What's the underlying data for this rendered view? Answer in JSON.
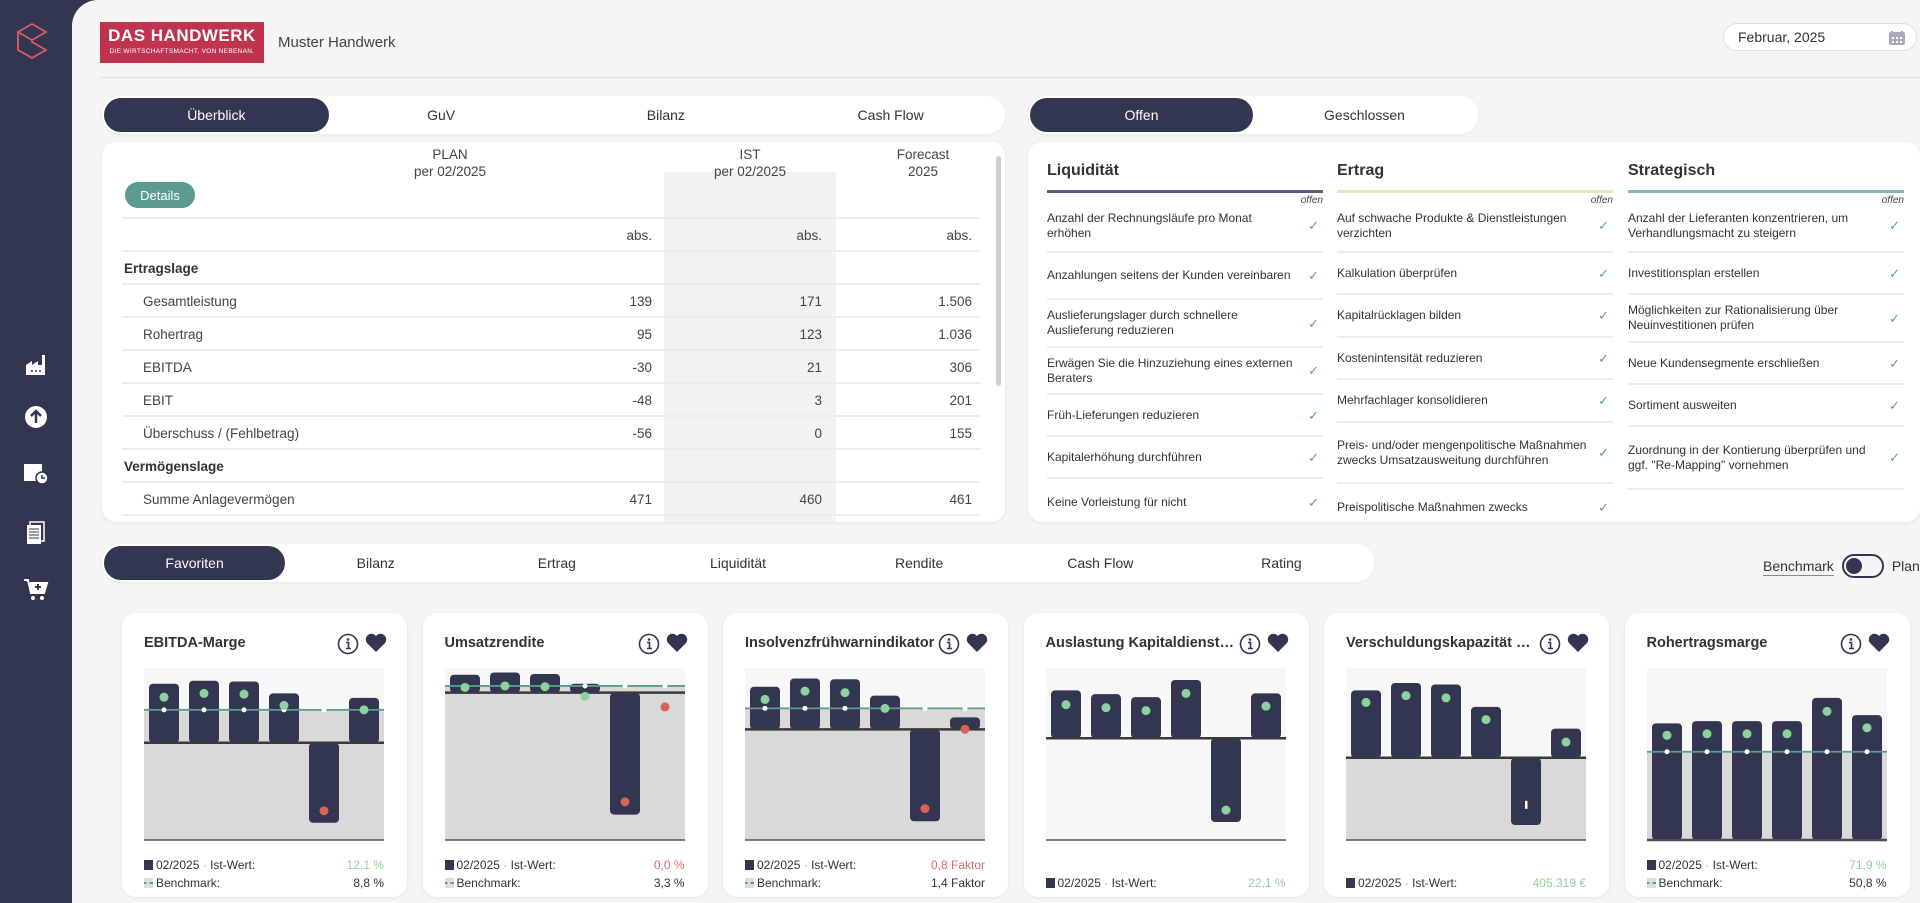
{
  "header": {
    "logo_line1": "DAS HANDWERK",
    "logo_line2": "DIE WIRTSCHAFTSMACHT. VON NEBENAN.",
    "company": "Muster Handwerk",
    "date": "Februar, 2025"
  },
  "sidebar": {
    "items": [
      "factory-icon",
      "upload-icon",
      "calendar-clock-icon",
      "documents-icon",
      "cart-plus-icon"
    ]
  },
  "main_tabs": [
    {
      "label": "Überblick",
      "active": true
    },
    {
      "label": "GuV"
    },
    {
      "label": "Bilanz"
    },
    {
      "label": "Cash Flow"
    }
  ],
  "status_tabs": [
    {
      "label": "Offen",
      "active": true
    },
    {
      "label": "Geschlossen"
    }
  ],
  "table": {
    "details_label": "Details",
    "columns": [
      {
        "l1": "PLAN",
        "l2": "per 02/2025"
      },
      {
        "l1": "IST",
        "l2": "per 02/2025"
      },
      {
        "l1": "Forecast",
        "l2": "2025"
      }
    ],
    "unit": "abs.",
    "rows": [
      {
        "label": "Ertragslage",
        "section": true
      },
      {
        "label": "Gesamtleistung",
        "plan": "139",
        "ist": "171",
        "forecast": "1.506"
      },
      {
        "label": "Rohertrag",
        "plan": "95",
        "ist": "123",
        "forecast": "1.036"
      },
      {
        "label": "EBITDA",
        "plan": "-30",
        "ist": "21",
        "forecast": "306"
      },
      {
        "label": "EBIT",
        "plan": "-48",
        "ist": "3",
        "forecast": "201"
      },
      {
        "label": "Überschuss / (Fehlbetrag)",
        "plan": "-56",
        "ist": "0",
        "forecast": "155"
      },
      {
        "label": "Vermögenslage",
        "section": true
      },
      {
        "label": "Summe Anlagevermögen",
        "plan": "471",
        "ist": "460",
        "forecast": "461"
      }
    ]
  },
  "measures": {
    "status_label": "offen",
    "columns": [
      {
        "title": "Liquidität",
        "color": "#5b5b7a",
        "items": [
          "Anzahl der Rechnungsläufe pro Monat erhöhen",
          "Anzahlungen seitens der Kunden vereinbaren",
          "Auslieferungslager durch schnellere Auslieferung reduzieren",
          "Erwägen Sie die Hinzuziehung eines externen Beraters",
          "Früh-Lieferungen reduzieren",
          "Kapitalerhöhung durchführen",
          "Keine Vorleistung für nicht"
        ]
      },
      {
        "title": "Ertrag",
        "color": "#e9e3c4",
        "items": [
          "Auf schwache Produkte & Dienstleistungen verzichten",
          "Kalkulation überprüfen",
          "Kapitalrücklagen bilden",
          "Kostenintensität reduzieren",
          "Mehrfachlager konsolidieren",
          "Preis- und/oder mengenpolitische Maßnahmen zwecks Umsatzausweitung durchführen",
          "Preispolitische Maßnahmen zwecks"
        ]
      },
      {
        "title": "Strategisch",
        "color": "#7fb8b3",
        "items": [
          "Anzahl der Lieferanten konzentrieren, um Verhandlungsmacht zu steigern",
          "Investitionsplan erstellen",
          "Möglichkeiten zur Rationalisierung über Neuinvestitionen prüfen",
          "Neue Kundensegmente erschließen",
          "Sortiment ausweiten",
          "Zuordnung in der Kontierung überprüfen und ggf. \"Re-Mapping\" vornehmen"
        ]
      }
    ]
  },
  "kpi_tabs": [
    {
      "label": "Favoriten",
      "active": true
    },
    {
      "label": "Bilanz"
    },
    {
      "label": "Ertrag"
    },
    {
      "label": "Liquidität"
    },
    {
      "label": "Rendite"
    },
    {
      "label": "Cash Flow"
    },
    {
      "label": "Rating"
    }
  ],
  "toggle": {
    "left": "Benchmark",
    "right": "Plan",
    "state": "Benchmark"
  },
  "colors": {
    "navy": "#323651",
    "green": "#8fd19e",
    "red": "#d9625a",
    "teal": "#5c9c90"
  },
  "chart_data": [
    {
      "type": "bar",
      "title": "EBITDA-Marge",
      "ylim": [
        -13,
        10
      ],
      "bars": [
        7.9,
        8.3,
        8.2,
        6.6,
        -10.7,
        6.0
      ],
      "dots": [
        6.1,
        6.6,
        6.5,
        5.0,
        -9.1,
        4.4
      ],
      "dot_colors": [
        "green",
        "green",
        "green",
        "green",
        "red",
        "green"
      ],
      "benchmark": 4.4,
      "period": "02/2025",
      "ist_label": "Ist-Wert:",
      "ist_value": "12,1 %",
      "ist_color": "green",
      "bench_label": "Benchmark:",
      "bench_value": "8,8 %"
    },
    {
      "type": "bar",
      "title": "Umsatzrendite",
      "ylim": [
        -19.7,
        3.3
      ],
      "bars": [
        2.4,
        2.7,
        2.5,
        1.2,
        -16.3,
        0
      ],
      "dots": [
        0.7,
        0.9,
        0.8,
        -0.5,
        -14.6,
        -1.9
      ],
      "dot_colors": [
        "green",
        "green",
        "green",
        "green",
        "red",
        "red"
      ],
      "benchmark": 0.9,
      "period": "02/2025",
      "ist_label": "Ist-Wert:",
      "ist_value": "0,0 %",
      "ist_color": "red",
      "bench_label": "Benchmark:",
      "bench_value": "3,3 %"
    },
    {
      "type": "bar",
      "title": "Insolvenzfrühwarnindikator",
      "ylim": [
        -14.8,
        8.2
      ],
      "bars": [
        5.7,
        6.8,
        6.7,
        4.5,
        -12.3,
        1.6
      ],
      "dots": [
        4.0,
        5.1,
        4.9,
        2.8,
        -10.6,
        0
      ],
      "dot_colors": [
        "green",
        "green",
        "green",
        "green",
        "red",
        "red"
      ],
      "benchmark": 2.8,
      "period": "02/2025",
      "ist_label": "Ist-Wert:",
      "ist_value": "0,8 Faktor",
      "ist_color": "red",
      "bench_label": "Benchmark:",
      "bench_value": "1,4 Faktor"
    },
    {
      "type": "bar",
      "title": "Auslastung Kapitaldienstfä...",
      "ylim": [
        -13.6,
        9.4
      ],
      "bars": [
        6.4,
        5.9,
        5.5,
        7.8,
        -11.2,
        6.0
      ],
      "dots": [
        4.5,
        4.1,
        3.7,
        6.0,
        -9.6,
        4.3
      ],
      "dot_colors": [
        "green",
        "green",
        "green",
        "green",
        "green",
        "green"
      ],
      "benchmark": null,
      "period": "02/2025",
      "ist_label": "Ist-Wert:",
      "ist_value": "22,1 %",
      "ist_color": "green"
    },
    {
      "type": "bar",
      "title": "Verschuldungskapazität 7 J...",
      "ylim": [
        -11,
        12
      ],
      "bars": [
        9.0,
        10.0,
        9.8,
        6.8,
        -9.0,
        3.9
      ],
      "dots": [
        7.4,
        8.3,
        8.0,
        5.1,
        -6.3,
        2.1
      ],
      "dot_colors": [
        "green",
        "green",
        "green",
        "green",
        "white",
        "green"
      ],
      "benchmark": null,
      "period": "02/2025",
      "ist_label": "Ist-Wert:",
      "ist_value": "405.319 €",
      "ist_color": "green"
    },
    {
      "type": "bar",
      "title": "Rohertragsmarge",
      "ylim": [
        0,
        23
      ],
      "bars": [
        15.6,
        15.9,
        15.9,
        15.9,
        19.0,
        16.7
      ],
      "dots": [
        14.0,
        14.2,
        14.2,
        14.2,
        17.2,
        15.0
      ],
      "dot_colors": [
        "green",
        "green",
        "green",
        "green",
        "green",
        "green"
      ],
      "benchmark": 11.8,
      "period": "02/2025",
      "ist_label": "Ist-Wert:",
      "ist_value": "71,9 %",
      "ist_color": "green",
      "bench_label": "Benchmark:",
      "bench_value": "50,8 %"
    }
  ]
}
